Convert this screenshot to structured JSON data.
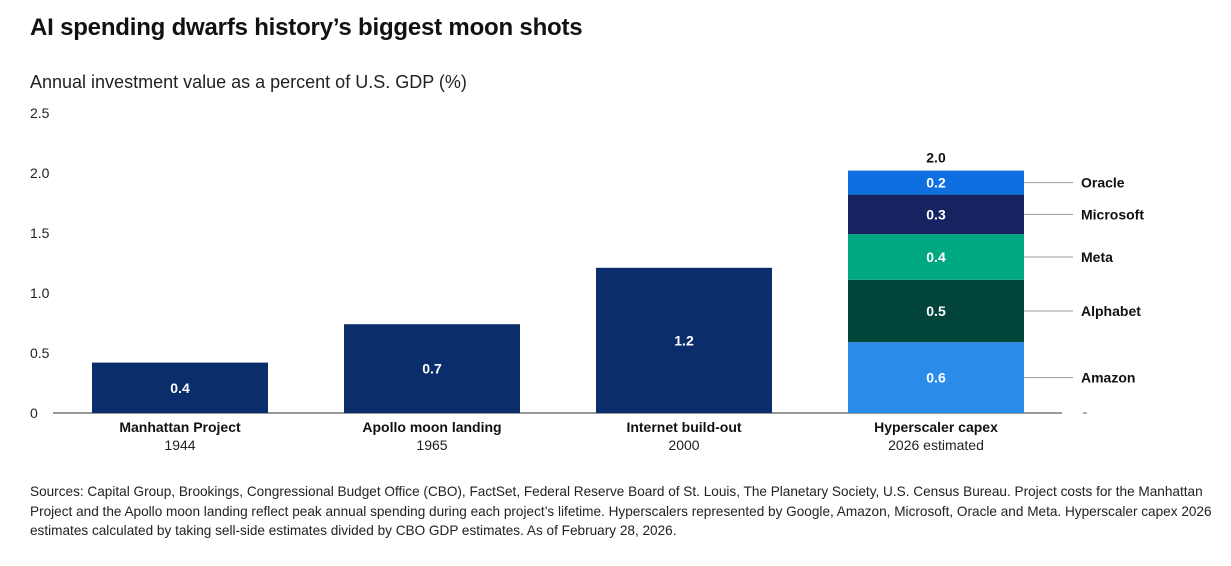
{
  "title": "AI spending dwarfs history’s biggest moon shots",
  "subtitle": "Annual investment value as a percent of U.S. GDP (%)",
  "sources": "Sources: Capital Group, Brookings, Congressional Budget Office (CBO), FactSet, Federal Reserve Board of St. Louis, The Planetary Society, U.S. Census Bureau. Project costs for the Manhattan Project and the Apollo moon landing reflect peak annual spending during each project’s lifetime. Hyperscalers represented by Google, Amazon, Microsoft, Oracle and Meta. Hyperscaler capex 2026 estimates calculated by taking sell-side estimates divided by CBO GDP estimates. As of February 28, 2026.",
  "chart_data": {
    "type": "bar",
    "title": "AI spending dwarfs history’s biggest moon shots",
    "ylabel": "Annual investment value as a percent of U.S. GDP (%)",
    "ylim": [
      0,
      2.5
    ],
    "yticks": [
      "0",
      "0.5",
      "1.0",
      "1.5",
      "2.0",
      "2.5"
    ],
    "grid": false,
    "categories": [
      {
        "name": "Manhattan Project",
        "year": "1944"
      },
      {
        "name": "Apollo moon landing",
        "year": "1965"
      },
      {
        "name": "Internet build-out",
        "year": "2000"
      },
      {
        "name": "Hyperscaler capex",
        "year": "2026 estimated"
      }
    ],
    "bars": [
      {
        "value": 0.42,
        "label": "0.4",
        "color": "#0b2d6b"
      },
      {
        "value": 0.74,
        "label": "0.7",
        "color": "#0b2d6b"
      },
      {
        "value": 1.21,
        "label": "1.2",
        "color": "#0b2d6b"
      },
      {
        "total_label": "2.0",
        "segments": [
          {
            "name": "Amazon",
            "value": 0.59,
            "label": "0.6",
            "color": "#2a8be8"
          },
          {
            "name": "Alphabet",
            "value": 0.52,
            "label": "0.5",
            "color": "#00443a"
          },
          {
            "name": "Meta",
            "value": 0.38,
            "label": "0.4",
            "color": "#00a882"
          },
          {
            "name": "Microsoft",
            "value": 0.33,
            "label": "0.3",
            "color": "#162360"
          },
          {
            "name": "Oracle",
            "value": 0.2,
            "label": "0.2",
            "color": "#0d6fe0"
          }
        ]
      }
    ]
  }
}
